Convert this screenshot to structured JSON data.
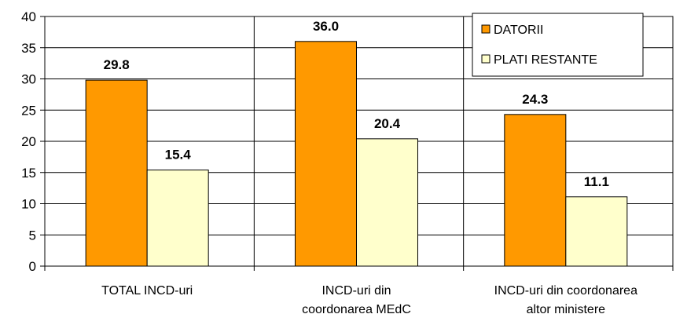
{
  "chart_data": {
    "type": "bar",
    "categories": [
      [
        "TOTAL INCD-uri"
      ],
      [
        "INCD-uri din",
        "coordonarea MEdC"
      ],
      [
        "INCD-uri din coordonarea",
        "altor ministere"
      ]
    ],
    "series": [
      {
        "name": "DATORII",
        "color": "#FF9900",
        "values": [
          29.8,
          36.0,
          24.3
        ],
        "labels": [
          "29.8",
          "36.0",
          "24.3"
        ]
      },
      {
        "name": "PLATI RESTANTE",
        "color": "#FFFFCC",
        "values": [
          15.4,
          20.4,
          11.1
        ],
        "labels": [
          "15.4",
          "20.4",
          "11.1"
        ]
      }
    ],
    "ylim": [
      0,
      40
    ],
    "yticks": [
      0,
      5,
      10,
      15,
      20,
      25,
      30,
      35,
      40
    ],
    "grid": true,
    "legend_position": "top-right",
    "bar_border_color": "#000000"
  }
}
